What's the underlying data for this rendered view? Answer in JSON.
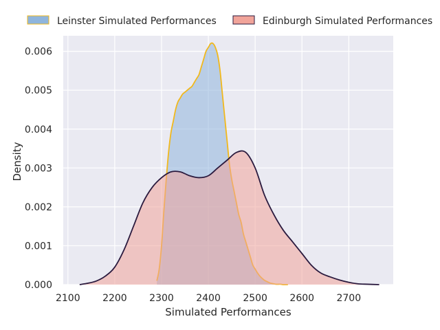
{
  "chart_data": {
    "type": "area",
    "title": "",
    "xlabel": "Simulated Performances",
    "ylabel": "Density",
    "xlim": [
      2090,
      2795
    ],
    "ylim": [
      0,
      0.0064
    ],
    "x_ticks": [
      2100,
      2200,
      2300,
      2400,
      2500,
      2600,
      2700
    ],
    "y_ticks": [
      "0.000",
      "0.001",
      "0.002",
      "0.003",
      "0.004",
      "0.005",
      "0.006"
    ],
    "grid": true,
    "legend_position": "top",
    "series": [
      {
        "name": "Leinster Simulated Performances",
        "fill": "#8fb5dc",
        "line": "#f1b81b",
        "x": [
          2290,
          2295,
          2300,
          2305,
          2310,
          2315,
          2320,
          2325,
          2330,
          2335,
          2340,
          2345,
          2350,
          2355,
          2360,
          2365,
          2370,
          2375,
          2380,
          2385,
          2390,
          2395,
          2400,
          2405,
          2410,
          2415,
          2420,
          2425,
          2430,
          2435,
          2440,
          2445,
          2450,
          2455,
          2460,
          2465,
          2470,
          2475,
          2480,
          2485,
          2490,
          2495,
          2500,
          2505,
          2510,
          2515,
          2520,
          2525,
          2530,
          2535,
          2540,
          2545,
          2550,
          2555,
          2560,
          2565,
          2570
        ],
        "values": [
          0.0001,
          0.0004,
          0.001,
          0.0019,
          0.0027,
          0.0034,
          0.0039,
          0.0042,
          0.0045,
          0.0047,
          0.0048,
          0.0049,
          0.00495,
          0.005,
          0.00505,
          0.0051,
          0.0052,
          0.0053,
          0.0054,
          0.0056,
          0.0058,
          0.006,
          0.0061,
          0.0062,
          0.0062,
          0.0061,
          0.0059,
          0.0055,
          0.0049,
          0.0043,
          0.0037,
          0.0031,
          0.0027,
          0.0024,
          0.0021,
          0.0018,
          0.0016,
          0.0013,
          0.0011,
          0.0009,
          0.0007,
          0.0005,
          0.0004,
          0.0003,
          0.00022,
          0.00016,
          0.00011,
          8e-05,
          5e-05,
          3e-05,
          2e-05,
          1e-05,
          1e-05,
          1e-05,
          0.0,
          0.0,
          0.0
        ]
      },
      {
        "name": "Edinburgh Simulated Performances",
        "fill": "#f1a49a",
        "line": "#2a1a3e",
        "x": [
          2125,
          2140,
          2160,
          2180,
          2200,
          2220,
          2240,
          2260,
          2280,
          2300,
          2320,
          2340,
          2360,
          2380,
          2400,
          2420,
          2440,
          2460,
          2480,
          2500,
          2520,
          2540,
          2560,
          2580,
          2600,
          2620,
          2640,
          2660,
          2680,
          2700,
          2720,
          2740,
          2765
        ],
        "values": [
          0.0,
          3e-05,
          9e-05,
          0.00022,
          0.00045,
          0.0009,
          0.0015,
          0.0021,
          0.0025,
          0.00275,
          0.0029,
          0.0029,
          0.0028,
          0.00275,
          0.0028,
          0.003,
          0.0032,
          0.0034,
          0.0034,
          0.003,
          0.0023,
          0.0018,
          0.0014,
          0.0011,
          0.0008,
          0.0005,
          0.0003,
          0.0002,
          0.00012,
          6e-05,
          2e-05,
          1e-05,
          0.0
        ]
      }
    ]
  }
}
